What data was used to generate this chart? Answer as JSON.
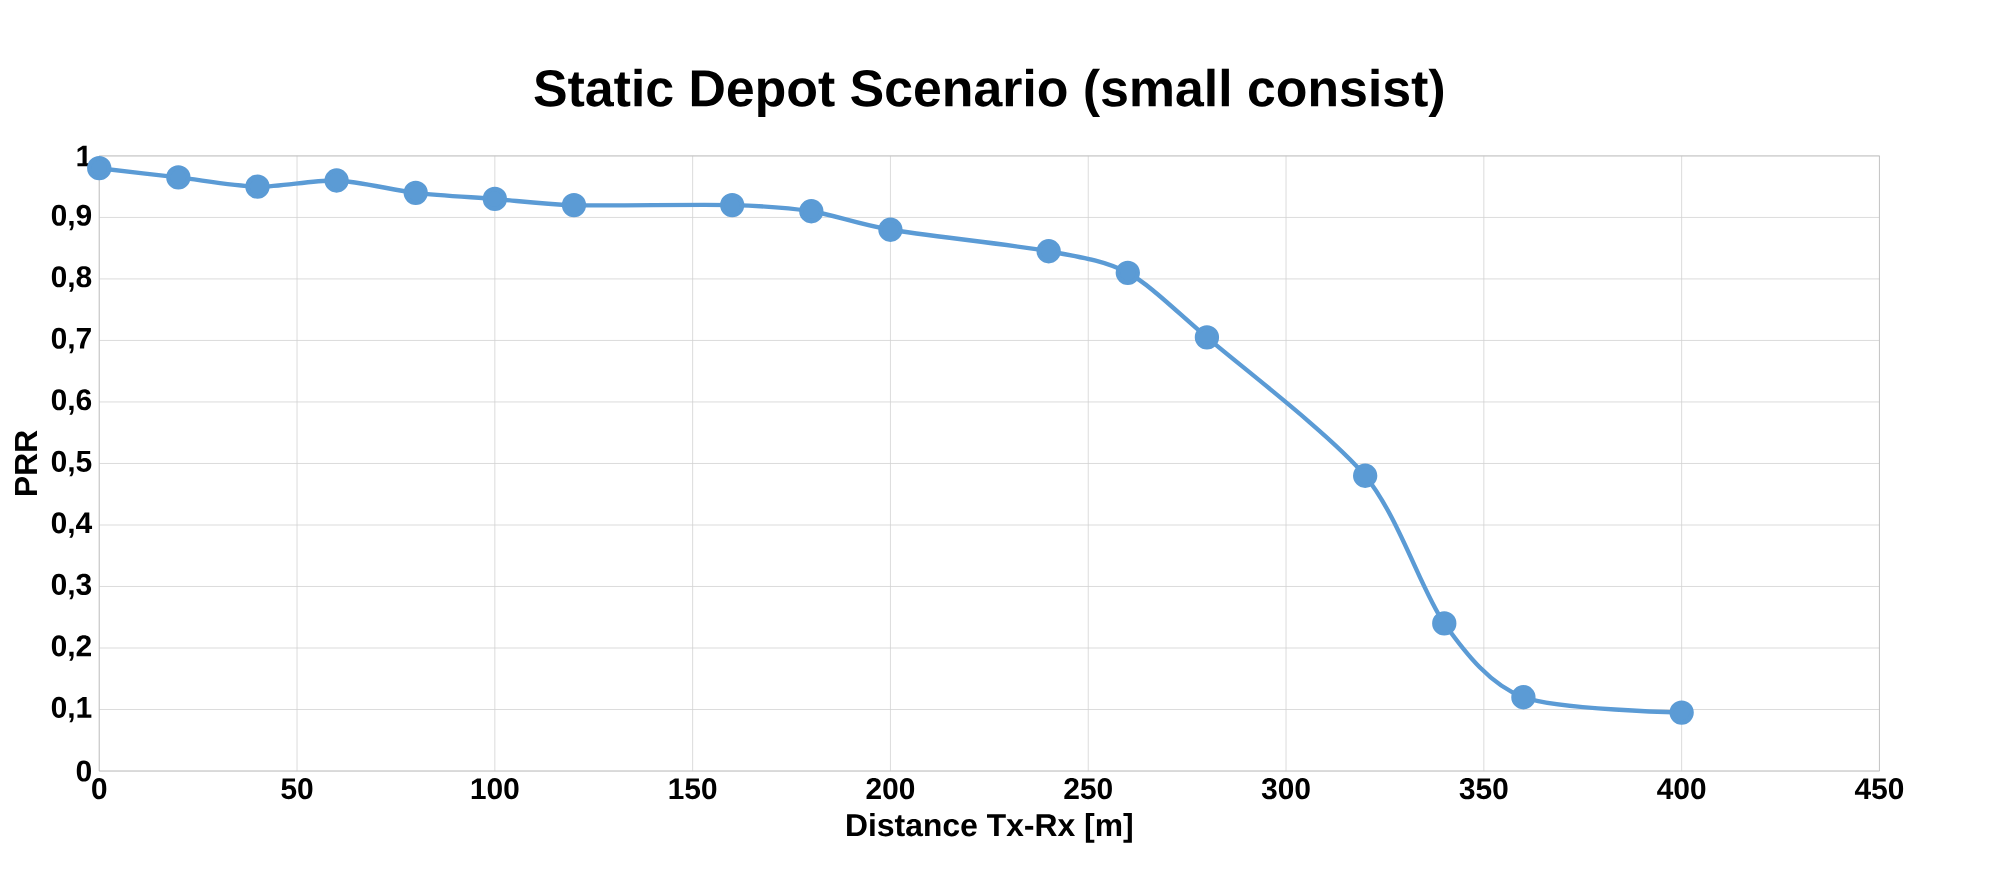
{
  "chart_data": {
    "type": "line",
    "title": "Static Depot Scenario (small consist)",
    "xlabel": "Distance Tx-Rx [m]",
    "ylabel": "PRR",
    "x": [
      0,
      20,
      40,
      60,
      80,
      100,
      120,
      160,
      180,
      200,
      240,
      260,
      280,
      320,
      340,
      360,
      400
    ],
    "series": [
      {
        "color": "#5b9bd5",
        "values": [
          0.98,
          0.965,
          0.95,
          0.96,
          0.94,
          0.93,
          0.92,
          0.92,
          0.91,
          0.88,
          0.845,
          0.81,
          0.705,
          0.48,
          0.24,
          0.12,
          0.095
        ]
      }
    ],
    "xlim": [
      0,
      450
    ],
    "xticks": [
      0,
      50,
      100,
      150,
      200,
      250,
      300,
      350,
      400,
      450
    ],
    "ylim": [
      0,
      1
    ],
    "yticks": [
      0,
      {
        "value": 0.1,
        "label": "0,1"
      },
      {
        "value": 0.2,
        "label": "0,2"
      },
      {
        "value": 0.3,
        "label": "0,3"
      },
      {
        "value": 0.4,
        "label": "0,4"
      },
      {
        "value": 0.5,
        "label": "0,5"
      },
      {
        "value": 0.6,
        "label": "0,6"
      },
      {
        "value": 0.7,
        "label": "0,7"
      },
      {
        "value": 0.8,
        "label": "0,8"
      },
      {
        "value": 0.9,
        "label": "0,9"
      },
      1
    ],
    "grid": true,
    "marker": "circle",
    "line_style": "solid"
  }
}
